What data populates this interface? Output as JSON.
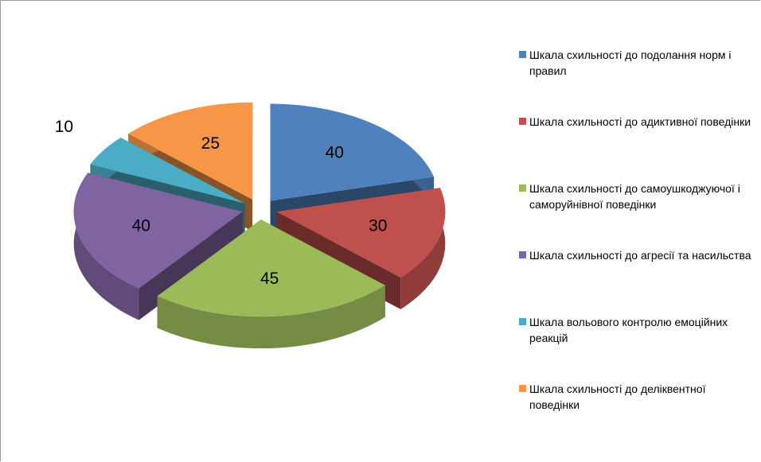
{
  "chart_data": {
    "type": "pie",
    "three_d": true,
    "exploded": true,
    "categories": [
      "Шкала схильності до подолання норм і правил",
      "Шкала схильності до адиктивної поведінки",
      "Шкала схильності до самоушкоджуючої і саморуйнівної поведінки",
      "Шкала схильності до агресії та насильства",
      "Шкала вольового контролю емоційних реакцій",
      "Шкала схильності до деліквентної поведінки"
    ],
    "values": [
      40,
      30,
      45,
      40,
      10,
      25
    ],
    "colors": [
      "#4f81bd",
      "#c0504d",
      "#9bbb59",
      "#8064a2",
      "#4bacc6",
      "#f79646"
    ],
    "legend": "right"
  }
}
